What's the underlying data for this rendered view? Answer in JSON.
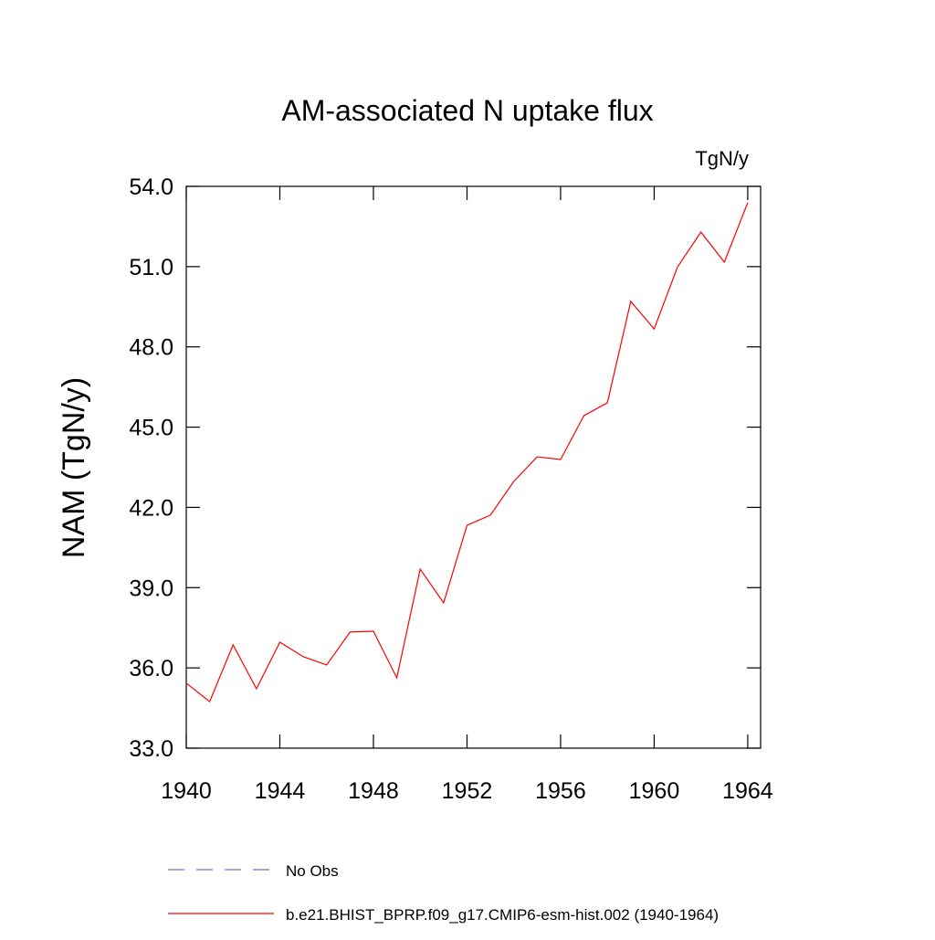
{
  "chart_data": {
    "type": "line",
    "title": "AM-associated N uptake flux",
    "units": "TgN/y",
    "ylabel": "NAM  (TgN/y)",
    "x": [
      1940,
      1941,
      1942,
      1943,
      1944,
      1945,
      1946,
      1947,
      1948,
      1949,
      1950,
      1951,
      1952,
      1953,
      1954,
      1955,
      1956,
      1957,
      1958,
      1959,
      1960,
      1961,
      1962,
      1963,
      1964
    ],
    "series": [
      {
        "name": "b.e21.BHIST_BPRP.f09_g17.CMIP6-esm-hist.002 (1940-1964)",
        "color": "#ff0000",
        "values": [
          35.43,
          34.74,
          36.86,
          35.22,
          36.96,
          36.42,
          36.11,
          37.34,
          37.37,
          35.63,
          39.69,
          38.43,
          41.33,
          41.71,
          42.97,
          43.89,
          43.79,
          45.43,
          45.91,
          49.7,
          48.67,
          50.99,
          52.29,
          51.17,
          53.39
        ]
      }
    ],
    "legend_extra": [
      {
        "name": "No Obs",
        "color": "#7070d0",
        "dashed": true
      }
    ],
    "xlim": [
      1940,
      1964.55
    ],
    "xticks": [
      1940,
      1944,
      1948,
      1952,
      1956,
      1960,
      1964
    ],
    "ylim": [
      33,
      54
    ],
    "yticks": [
      {
        "value": 33,
        "label": "33.0"
      },
      {
        "value": 36,
        "label": "36.0"
      },
      {
        "value": 39,
        "label": "39.0"
      },
      {
        "value": 42,
        "label": "42.0"
      },
      {
        "value": 45,
        "label": "45.0"
      },
      {
        "value": 48,
        "label": "48.0"
      },
      {
        "value": 51,
        "label": "51.0"
      },
      {
        "value": 54,
        "label": "54.0"
      }
    ],
    "grid": false
  }
}
